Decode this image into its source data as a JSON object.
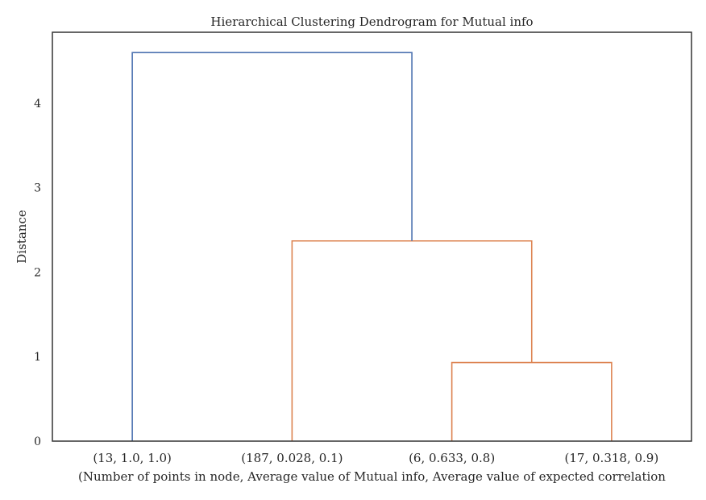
{
  "chart_data": {
    "type": "dendrogram",
    "title": "Hierarchical Clustering Dendrogram for Mutual info",
    "xlabel": "(Number of points in node, Average value of Mutual info, Average value of expected correlation",
    "ylabel": "Distance",
    "ylim": [
      0,
      4.84
    ],
    "yticks": [
      0,
      1,
      2,
      3,
      4
    ],
    "grid": false,
    "leaves": [
      "(13, 1.0, 1.0)",
      "(187, 0.028, 0.1)",
      "(6, 0.633, 0.8)",
      "(17, 0.318, 0.9)"
    ],
    "merges": [
      {
        "left": "leaf:2",
        "right": "leaf:3",
        "height": 0.93,
        "color": "#dd8452"
      },
      {
        "left": "leaf:1",
        "right": "merge:0",
        "height": 2.37,
        "color": "#dd8452"
      },
      {
        "left": "leaf:0",
        "right": "merge:1",
        "height": 4.6,
        "color": "#4c72b0"
      }
    ]
  }
}
